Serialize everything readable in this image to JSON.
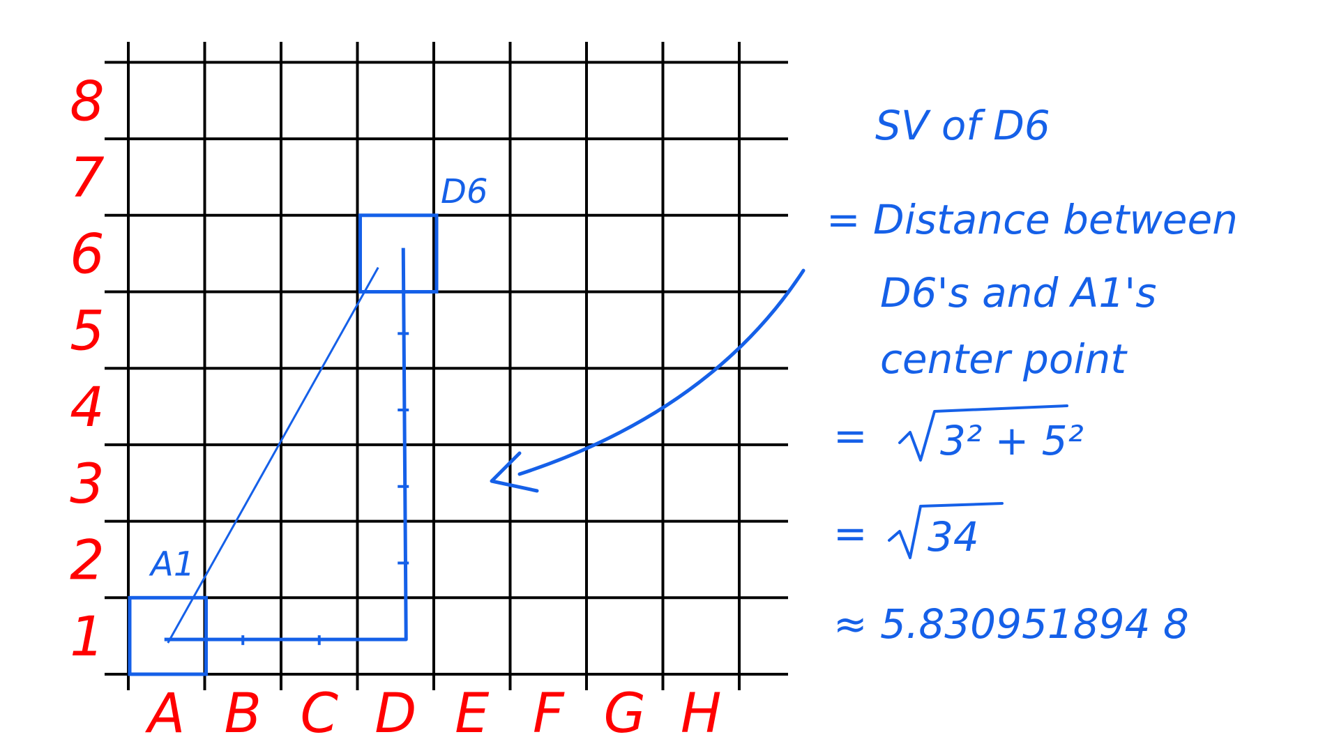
{
  "colors": {
    "grid": "#000000",
    "axis_labels": "#ff0000",
    "annotation": "#1560e8"
  },
  "grid": {
    "columns": [
      "A",
      "B",
      "C",
      "D",
      "E",
      "F",
      "G",
      "H"
    ],
    "rows": [
      "1",
      "2",
      "3",
      "4",
      "5",
      "6",
      "7",
      "8"
    ]
  },
  "cells": {
    "start": {
      "label": "A1",
      "col": 0,
      "row": 0
    },
    "target": {
      "label": "D6",
      "col": 3,
      "row": 5
    }
  },
  "notes": {
    "title": "SV of D6",
    "line1": "= Distance between",
    "line2": "D6's and A1's",
    "line3": "center point",
    "eq_sign1": "=",
    "radicand1": "3² + 5²",
    "eq_sign2": "=",
    "radicand2": "34",
    "approx": "≈ 5.830951894 8"
  }
}
